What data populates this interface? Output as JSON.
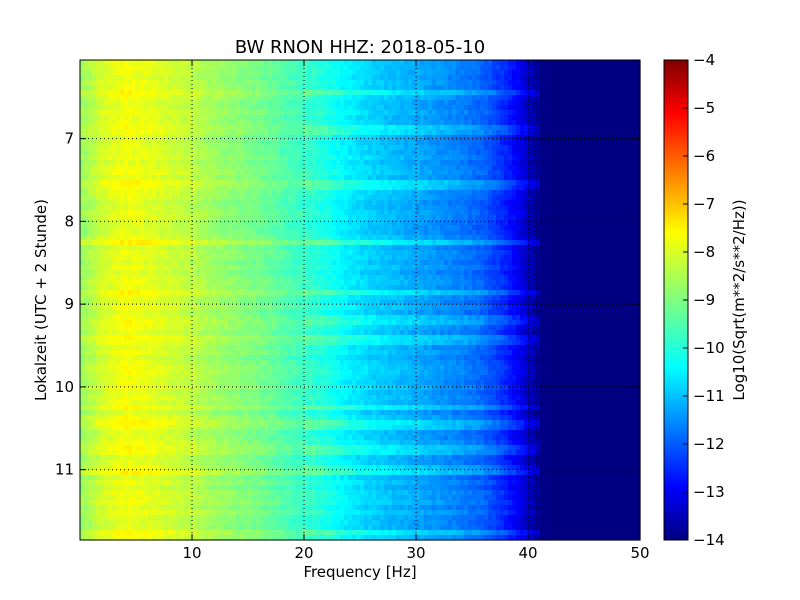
{
  "chart_data": {
    "type": "heatmap",
    "title": "BW RNON HHZ: 2018-05-10",
    "xlabel": "Frequency [Hz]",
    "ylabel": "Lokalzeit (UTC + 2 Stunde)",
    "xlim": [
      0,
      50
    ],
    "ylim": [
      11.85,
      6.05
    ],
    "y_inverted": true,
    "grid": true,
    "grid_style": "dotted",
    "x_ticks": [
      10,
      20,
      30,
      40,
      50
    ],
    "y_ticks": [
      7,
      8,
      9,
      10,
      11
    ],
    "x_tick_labels": [
      "10",
      "20",
      "30",
      "40",
      "50"
    ],
    "y_tick_labels": [
      "7",
      "8",
      "9",
      "10",
      "11"
    ],
    "colormap": "jet",
    "colorbar": {
      "label": "Log10(Sqrt(m**2/s**2/Hz))",
      "range": [
        -14,
        -4
      ],
      "ticks": [
        -4,
        -5,
        -6,
        -7,
        -8,
        -9,
        -10,
        -11,
        -12,
        -13,
        -14
      ],
      "tick_labels": [
        "−4",
        "−5",
        "−6",
        "−7",
        "−8",
        "−9",
        "−10",
        "−11",
        "−12",
        "−13",
        "−14"
      ]
    },
    "spectrum_profile": {
      "frequency_hz": [
        0,
        2,
        4,
        6,
        8,
        10,
        12,
        14,
        16,
        18,
        20,
        22,
        24,
        26,
        28,
        30,
        32,
        34,
        36,
        38,
        39,
        40,
        41,
        42,
        45,
        50
      ],
      "log10_amplitude": [
        -8.8,
        -8.2,
        -7.9,
        -8.0,
        -8.2,
        -8.4,
        -8.7,
        -8.9,
        -9.1,
        -9.4,
        -9.7,
        -10.0,
        -10.4,
        -10.7,
        -10.9,
        -11.1,
        -11.3,
        -11.5,
        -11.8,
        -12.4,
        -12.8,
        -13.3,
        -13.9,
        -14,
        -14,
        -14
      ]
    },
    "bright_line_times": [
      6.45,
      6.9,
      7.55,
      8.25,
      8.85,
      9.2,
      9.45,
      10.25,
      10.45,
      10.75,
      11.0,
      11.75
    ]
  }
}
